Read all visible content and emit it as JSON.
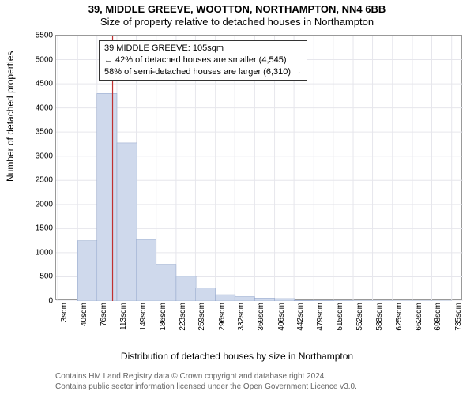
{
  "title_line1": "39, MIDDLE GREEVE, WOOTTON, NORTHAMPTON, NN4 6BB",
  "title_line2": "Size of property relative to detached houses in Northampton",
  "ylabel": "Number of detached properties",
  "xlabel": "Distribution of detached houses by size in Northampton",
  "attribution_line1": "Contains HM Land Registry data © Crown copyright and database right 2024.",
  "attribution_line2": "Contains public sector information licensed under the Open Government Licence v3.0.",
  "chart": {
    "type": "histogram",
    "xlim": [
      0,
      756
    ],
    "ylim": [
      0,
      5500
    ],
    "y_ticks": [
      0,
      500,
      1000,
      1500,
      2000,
      2500,
      3000,
      3500,
      4000,
      4500,
      5000,
      5500
    ],
    "x_ticks": [
      3,
      40,
      76,
      113,
      149,
      186,
      223,
      259,
      296,
      332,
      369,
      406,
      442,
      479,
      515,
      552,
      588,
      625,
      662,
      698,
      735
    ],
    "x_tick_labels": [
      "3sqm",
      "40sqm",
      "76sqm",
      "113sqm",
      "149sqm",
      "186sqm",
      "223sqm",
      "259sqm",
      "296sqm",
      "332sqm",
      "369sqm",
      "406sqm",
      "442sqm",
      "479sqm",
      "515sqm",
      "552sqm",
      "588sqm",
      "625sqm",
      "662sqm",
      "698sqm",
      "735sqm"
    ],
    "bar_color": "#cfd9ec",
    "bar_border": "#8fa3c9",
    "grid_color": "#e6e6ec",
    "background_color": "#ffffff",
    "bin_width": 37,
    "bins": [
      {
        "x": 3,
        "count": 0
      },
      {
        "x": 40,
        "count": 1250
      },
      {
        "x": 76,
        "count": 4300
      },
      {
        "x": 113,
        "count": 3275
      },
      {
        "x": 149,
        "count": 1275
      },
      {
        "x": 186,
        "count": 760
      },
      {
        "x": 223,
        "count": 510
      },
      {
        "x": 259,
        "count": 270
      },
      {
        "x": 296,
        "count": 130
      },
      {
        "x": 332,
        "count": 90
      },
      {
        "x": 369,
        "count": 60
      },
      {
        "x": 406,
        "count": 50
      },
      {
        "x": 442,
        "count": 10
      },
      {
        "x": 479,
        "count": 8
      },
      {
        "x": 515,
        "count": 6
      },
      {
        "x": 552,
        "count": 4
      },
      {
        "x": 588,
        "count": 3
      },
      {
        "x": 625,
        "count": 2
      },
      {
        "x": 662,
        "count": 2
      },
      {
        "x": 698,
        "count": 1
      }
    ],
    "marker": {
      "x": 105,
      "color": "#c03030"
    }
  },
  "infobox": {
    "line1": "39 MIDDLE GREEVE: 105sqm",
    "line2": "← 42% of detached houses are smaller (4,545)",
    "line3": "58% of semi-detached houses are larger (6,310) →"
  },
  "style": {
    "title_fontsize": 13,
    "label_fontsize": 12,
    "tick_fontsize": 10,
    "infobox_fontsize": 11,
    "attribution_color": "#666666"
  }
}
